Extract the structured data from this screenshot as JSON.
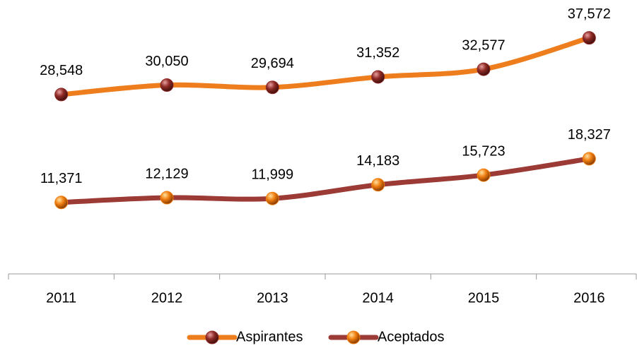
{
  "chart_data": {
    "type": "line",
    "categories": [
      "2011",
      "2012",
      "2013",
      "2014",
      "2015",
      "2016"
    ],
    "series": [
      {
        "name": "Aspirantes",
        "color": "#ee7d1e",
        "marker_color": "#8e2a26",
        "values": [
          28548,
          30050,
          29694,
          31352,
          32577,
          37572
        ],
        "value_labels": [
          "28,548",
          "30,050",
          "29,694",
          "31,352",
          "32,577",
          "37,572"
        ]
      },
      {
        "name": "Aceptados",
        "color": "#9c3a35",
        "marker_color": "#f07f10",
        "values": [
          11371,
          12129,
          11999,
          14183,
          15723,
          18327
        ],
        "value_labels": [
          "11,371",
          "12,129",
          "11,999",
          "14,183",
          "15,723",
          "18,327"
        ]
      }
    ],
    "ylim": [
      0,
      40000
    ],
    "legend": "bottom"
  }
}
